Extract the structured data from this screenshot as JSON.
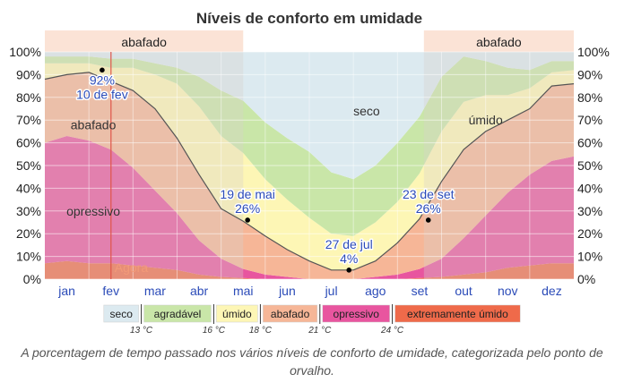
{
  "chart_data": {
    "type": "area",
    "title": "Níveis de conforto em umidade",
    "x_months": [
      "jan",
      "fev",
      "mar",
      "abr",
      "mai",
      "jun",
      "jul",
      "ago",
      "set",
      "out",
      "nov",
      "dez"
    ],
    "y_tick_labels": [
      "0%",
      "10%",
      "20%",
      "30%",
      "40%",
      "50%",
      "60%",
      "70%",
      "80%",
      "90%",
      "100%"
    ],
    "ylim": [
      0,
      100
    ],
    "grid": true,
    "x_month_positions": [
      0.5,
      1.5,
      2.5,
      3.5,
      4.5,
      5.5,
      6.5,
      7.5,
      8.5,
      9.5,
      10.5,
      11.5
    ],
    "series_order_bottom_to_top": [
      "extremamente úmido",
      "opressivo",
      "abafado",
      "úmido",
      "agradável",
      "seco"
    ],
    "series": [
      {
        "name": "extremamente úmido",
        "color": "#ef6a4a",
        "x": [
          0,
          0.5,
          1,
          1.5,
          2,
          2.5,
          3,
          3.5,
          4,
          4.5,
          5,
          5.5,
          6,
          6.5,
          7,
          7.5,
          8,
          8.5,
          9,
          9.5,
          10,
          10.5,
          11,
          11.5,
          12
        ],
        "values": [
          7,
          8,
          7,
          7,
          6,
          5,
          4,
          2,
          1,
          0.5,
          0,
          0,
          0,
          0,
          0,
          0,
          0,
          0.5,
          1,
          2,
          3,
          5,
          6,
          7,
          7
        ]
      },
      {
        "name": "opressivo",
        "color": "#e8559f",
        "x": [
          0,
          0.5,
          1,
          1.5,
          2,
          2.5,
          3,
          3.5,
          4,
          4.5,
          5,
          5.5,
          6,
          6.5,
          7,
          7.5,
          8,
          8.5,
          9,
          9.5,
          10,
          10.5,
          11,
          11.5,
          12
        ],
        "values": [
          53,
          55,
          54,
          50,
          43,
          34,
          25,
          15,
          8,
          4,
          2,
          1,
          0,
          0,
          0,
          1,
          2,
          4,
          8,
          16,
          25,
          33,
          40,
          45,
          47
        ]
      },
      {
        "name": "abafado",
        "color": "#f6b697",
        "x": [
          0,
          0.5,
          1,
          1.5,
          2,
          2.5,
          3,
          3.5,
          4,
          4.5,
          5,
          5.5,
          6,
          6.5,
          7,
          7.5,
          8,
          8.5,
          9,
          9.5,
          10,
          10.5,
          11,
          11.5,
          12
        ],
        "values": [
          28,
          27,
          30,
          30,
          34,
          36,
          33,
          29,
          22,
          21,
          17,
          12,
          8,
          4,
          4,
          7,
          14,
          22,
          34,
          39,
          37,
          32,
          29,
          33,
          32
        ]
      },
      {
        "name": "úmido",
        "color": "#fdf6b5",
        "x": [
          0,
          0.5,
          1,
          1.5,
          2,
          2.5,
          3,
          3.5,
          4,
          4.5,
          5,
          5.5,
          6,
          6.5,
          7,
          7.5,
          8,
          8.5,
          9,
          9.5,
          10,
          10.5,
          11,
          11.5,
          12
        ],
        "values": [
          7,
          5,
          4,
          6,
          10,
          15,
          24,
          30,
          32,
          30,
          25,
          22,
          19,
          16,
          15,
          17,
          18,
          20,
          22,
          21,
          16,
          11,
          9,
          6,
          6
        ]
      },
      {
        "name": "agradável",
        "color": "#c9e6a8",
        "x": [
          0,
          0.5,
          1,
          1.5,
          2,
          2.5,
          3,
          3.5,
          4,
          4.5,
          5,
          5.5,
          6,
          6.5,
          7,
          7.5,
          8,
          8.5,
          9,
          9.5,
          10,
          10.5,
          11,
          11.5,
          12
        ],
        "values": [
          3,
          3,
          3,
          4,
          4,
          5,
          7,
          13,
          20,
          23,
          25,
          27,
          29,
          27,
          25,
          25,
          26,
          25,
          24,
          20,
          15,
          12,
          8,
          5,
          4
        ]
      },
      {
        "name": "seco",
        "color": "#dceaf0",
        "x": [
          0,
          0.5,
          1,
          1.5,
          2,
          2.5,
          3,
          3.5,
          4,
          4.5,
          5,
          5.5,
          6,
          6.5,
          7,
          7.5,
          8,
          8.5,
          9,
          9.5,
          10,
          10.5,
          11,
          11.5,
          12
        ],
        "values": [
          2,
          2,
          2,
          3,
          3,
          5,
          7,
          11,
          17,
          22,
          31,
          38,
          44,
          53,
          56,
          50,
          40,
          29,
          11,
          2,
          4,
          7,
          8,
          4,
          4
        ]
      }
    ],
    "muggy_line": {
      "description_label": "abafado",
      "x": [
        0,
        0.5,
        1,
        1.5,
        2,
        2.5,
        3,
        3.5,
        4,
        4.5,
        5,
        5.5,
        6,
        6.5,
        7,
        7.5,
        8,
        8.5,
        9,
        9.5,
        10,
        10.5,
        11,
        11.5,
        12
      ],
      "values": [
        88,
        90,
        91,
        87,
        83,
        75,
        62,
        46,
        31,
        25.5,
        19,
        13,
        8,
        4,
        4,
        8,
        16,
        26.5,
        43,
        57,
        65,
        70,
        75,
        85,
        86
      ]
    },
    "annotations": [
      {
        "value_text": "92%",
        "date_text": "10 de fev",
        "x": 1.3,
        "y": 92,
        "label_side": "below"
      },
      {
        "value_text": "26%",
        "date_text": "19 de mai",
        "x": 4.6,
        "y": 26,
        "label_side": "above"
      },
      {
        "value_text": "4%",
        "date_text": "27 de jul",
        "x": 6.9,
        "y": 4,
        "label_side": "above"
      },
      {
        "value_text": "26%",
        "date_text": "23 de set",
        "x": 8.7,
        "y": 26,
        "label_side": "above"
      }
    ],
    "band_labels": [
      {
        "text": "seco",
        "x": 7.3,
        "y": 74
      },
      {
        "text": "úmido",
        "x": 10.0,
        "y": 70
      },
      {
        "text": "abafado",
        "x": 1.1,
        "y": 68
      },
      {
        "text": "opressivo",
        "x": 1.1,
        "y": 30
      }
    ],
    "top_bands": [
      {
        "label": "abafado",
        "x_start": 0,
        "x_end": 4.5
      },
      {
        "label": "abafado",
        "x_start": 8.6,
        "x_end": 12
      }
    ],
    "now_marker": {
      "label": "Agora",
      "x": 1.5
    },
    "legend": {
      "items": [
        {
          "label": "seco",
          "color": "#dceaf0"
        },
        {
          "label": "agradável",
          "color": "#c9e6a8"
        },
        {
          "label": "úmido",
          "color": "#fdf6b5"
        },
        {
          "label": "abafado",
          "color": "#f6b697"
        },
        {
          "label": "opressivo",
          "color": "#e8559f"
        },
        {
          "label": "extremamente úmido",
          "color": "#ef6a4a"
        }
      ],
      "thresholds": [
        "13 °C",
        "16 °C",
        "18 °C",
        "21 °C",
        "24 °C"
      ],
      "placement": "bottom"
    }
  },
  "caption": "A porcentagem de tempo passado nos vários níveis de conforto de umidade, categorizada pelo ponto de orvalho."
}
